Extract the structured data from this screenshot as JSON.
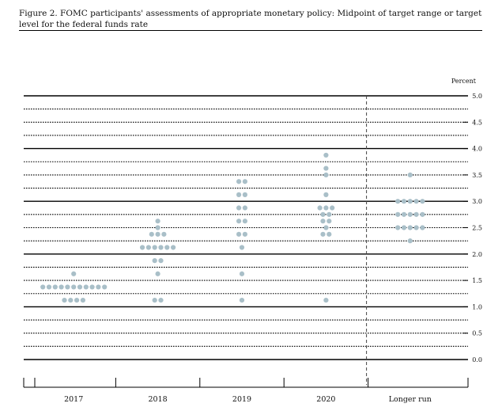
{
  "figure": {
    "title": "Figure 2. FOMC participants' assessments of appropriate monetary policy: Midpoint of target range or target level for the federal funds rate"
  },
  "chart_data": {
    "type": "scatter",
    "title": "Figure 2. FOMC participants' assessments of appropriate monetary policy: Midpoint of target range or target level for the federal funds rate",
    "ylabel": "Percent",
    "ylim": [
      0,
      5.0
    ],
    "y_ticks": [
      "5.0",
      "4.5",
      "4.0",
      "3.5",
      "3.0",
      "2.5",
      "2.0",
      "1.5",
      "1.0",
      "0.5",
      "0.0"
    ],
    "categories": [
      "2017",
      "2018",
      "2019",
      "2020",
      "Longer run"
    ],
    "dot_color": "#a9bfc8",
    "gridlines": "solid at whole numbers, dotted at 0.25 increments",
    "series": [
      {
        "category": "2017",
        "points": [
          {
            "y": 1.625,
            "count": 1
          },
          {
            "y": 1.375,
            "count": 11
          },
          {
            "y": 1.125,
            "count": 4
          }
        ]
      },
      {
        "category": "2018",
        "points": [
          {
            "y": 2.625,
            "count": 1
          },
          {
            "y": 2.5,
            "count": 1
          },
          {
            "y": 2.375,
            "count": 3
          },
          {
            "y": 2.125,
            "count": 6
          },
          {
            "y": 1.875,
            "count": 2
          },
          {
            "y": 1.625,
            "count": 1
          },
          {
            "y": 1.125,
            "count": 2
          }
        ]
      },
      {
        "category": "2019",
        "points": [
          {
            "y": 3.375,
            "count": 2
          },
          {
            "y": 3.125,
            "count": 2
          },
          {
            "y": 2.875,
            "count": 2
          },
          {
            "y": 2.625,
            "count": 2
          },
          {
            "y": 2.375,
            "count": 2
          },
          {
            "y": 2.125,
            "count": 1
          },
          {
            "y": 1.625,
            "count": 1
          },
          {
            "y": 1.125,
            "count": 1
          }
        ]
      },
      {
        "category": "2020",
        "points": [
          {
            "y": 3.875,
            "count": 1
          },
          {
            "y": 3.625,
            "count": 1
          },
          {
            "y": 3.5,
            "count": 1
          },
          {
            "y": 3.125,
            "count": 1
          },
          {
            "y": 2.875,
            "count": 3
          },
          {
            "y": 2.75,
            "count": 2
          },
          {
            "y": 2.625,
            "count": 2
          },
          {
            "y": 2.5,
            "count": 1
          },
          {
            "y": 2.375,
            "count": 2
          },
          {
            "y": 1.125,
            "count": 1
          }
        ]
      },
      {
        "category": "Longer run",
        "points": [
          {
            "y": 3.5,
            "count": 1
          },
          {
            "y": 3.0,
            "count": 5
          },
          {
            "y": 2.75,
            "count": 5
          },
          {
            "y": 2.5,
            "count": 5
          },
          {
            "y": 2.25,
            "count": 1
          }
        ]
      }
    ]
  }
}
